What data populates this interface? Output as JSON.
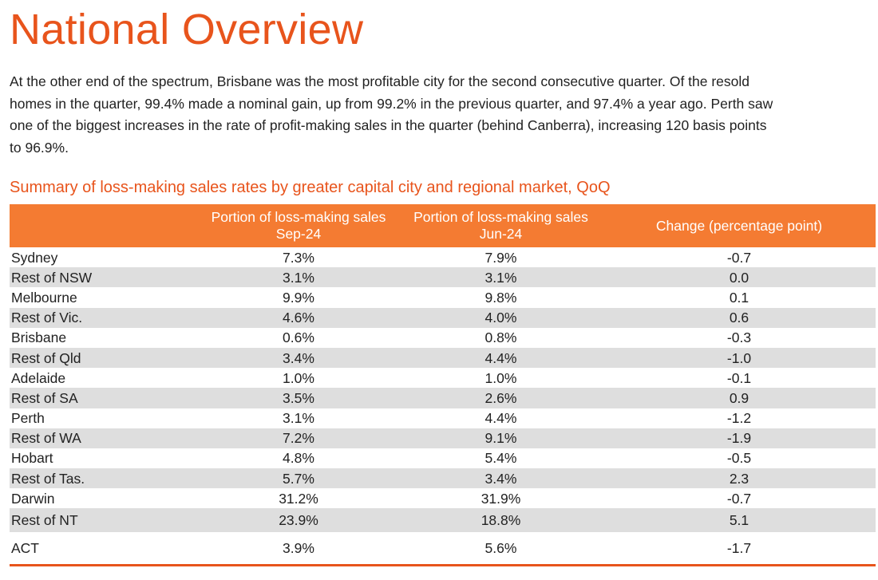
{
  "page": {
    "title": "National Overview",
    "intro": "At the other end of the spectrum, Brisbane was the most profitable city for the second consecutive quarter. Of the resold homes in the quarter, 99.4% made a nominal gain, up from 99.2% in the previous quarter, and 97.4% a year ago. Perth saw one of the biggest increases in the rate of profit-making sales in the quarter (behind Canberra), increasing 120 basis points to 96.9%."
  },
  "table": {
    "title": "Summary of loss-making sales rates by greater capital city and regional market, QoQ",
    "headers": [
      "",
      "Portion of loss-making sales Sep-24",
      "Portion of loss-making sales Jun-24",
      "Change (percentage point)"
    ],
    "rows": [
      {
        "region": "Sydney",
        "sep24": "7.3%",
        "jun24": "7.9%",
        "change": "-0.7"
      },
      {
        "region": "Rest of NSW",
        "sep24": "3.1%",
        "jun24": "3.1%",
        "change": "0.0"
      },
      {
        "region": "Melbourne",
        "sep24": "9.9%",
        "jun24": "9.8%",
        "change": "0.1"
      },
      {
        "region": "Rest of Vic.",
        "sep24": "4.6%",
        "jun24": "4.0%",
        "change": "0.6"
      },
      {
        "region": "Brisbane",
        "sep24": "0.6%",
        "jun24": "0.8%",
        "change": "-0.3"
      },
      {
        "region": "Rest of Qld",
        "sep24": "3.4%",
        "jun24": "4.4%",
        "change": "-1.0"
      },
      {
        "region": "Adelaide",
        "sep24": "1.0%",
        "jun24": "1.0%",
        "change": "-0.1"
      },
      {
        "region": "Rest of SA",
        "sep24": "3.5%",
        "jun24": "2.6%",
        "change": "0.9"
      },
      {
        "region": "Perth",
        "sep24": "3.1%",
        "jun24": "4.4%",
        "change": "-1.2"
      },
      {
        "region": "Rest of WA",
        "sep24": "7.2%",
        "jun24": "9.1%",
        "change": "-1.9"
      },
      {
        "region": "Hobart",
        "sep24": "4.8%",
        "jun24": "5.4%",
        "change": "-0.5"
      },
      {
        "region": "Rest of Tas.",
        "sep24": "5.7%",
        "jun24": "3.4%",
        "change": "2.3"
      },
      {
        "region": "Darwin",
        "sep24": "31.2%",
        "jun24": "31.9%",
        "change": "-0.7"
      },
      {
        "region": "Rest of NT",
        "sep24": "23.9%",
        "jun24": "18.8%",
        "change": "5.1"
      },
      {
        "region": "ACT",
        "sep24": "3.9%",
        "jun24": "5.6%",
        "change": "-1.7"
      }
    ]
  },
  "colors": {
    "accent": "#e8541c",
    "header_bg": "#f47b32",
    "stripe": "#dedede",
    "text": "#222222"
  }
}
